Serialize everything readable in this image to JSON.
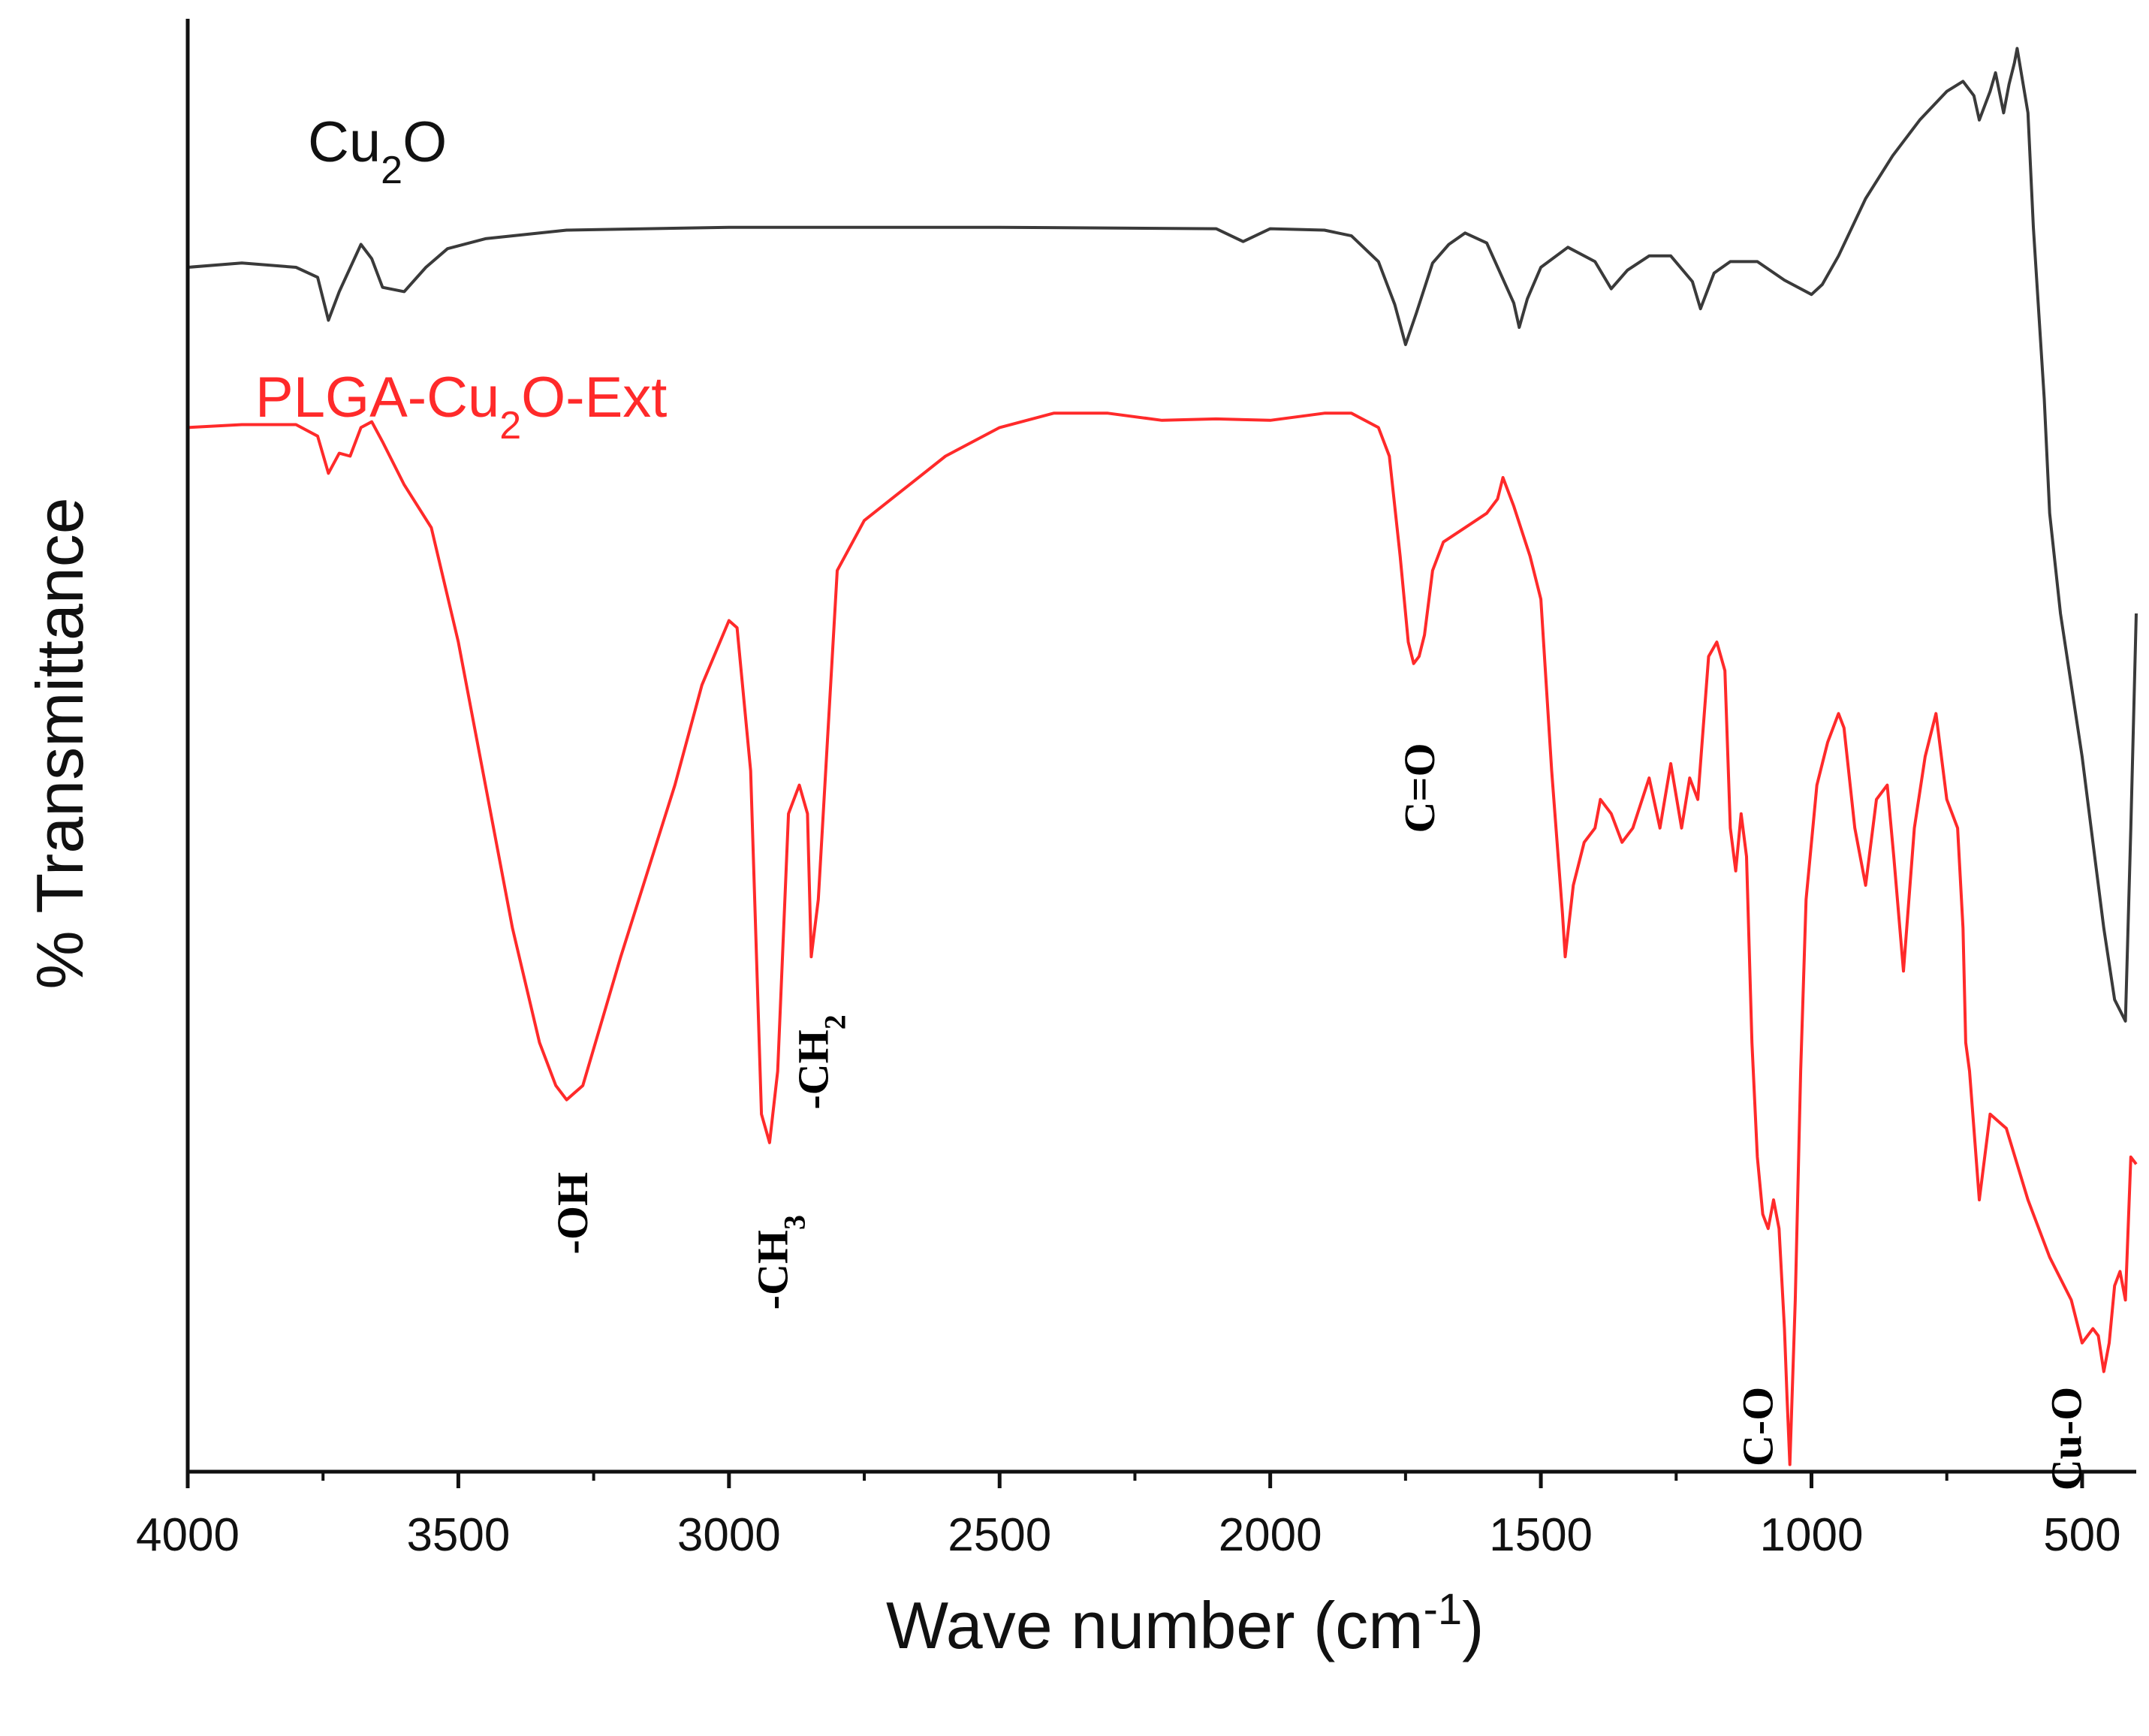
{
  "chart_data": {
    "type": "line",
    "title": "",
    "xlabel": "Wave number (cm",
    "xlabel_sup": "-1",
    "xlabel_end": ")",
    "ylabel": "% Transmittance",
    "xlim": [
      4000,
      400
    ],
    "ylim": [
      0,
      100
    ],
    "x_ticks": [
      4000,
      3500,
      3000,
      2500,
      2000,
      1500,
      1000,
      500
    ],
    "x_tick_labels": [
      "4000",
      "3500",
      "3000",
      "2500",
      "2000",
      "1500",
      "1000",
      "500"
    ],
    "y_ticks_shown": false,
    "grid": false,
    "series": [
      {
        "name": "Cu2O",
        "label_main": "Cu",
        "label_sub": "2",
        "label_end": "O",
        "color": "#3a3a3a",
        "x": [
          4000,
          3900,
          3800,
          3760,
          3740,
          3720,
          3680,
          3660,
          3640,
          3600,
          3560,
          3520,
          3450,
          3300,
          3000,
          2500,
          2100,
          2050,
          2000,
          1900,
          1850,
          1800,
          1770,
          1750,
          1730,
          1700,
          1670,
          1640,
          1600,
          1550,
          1540,
          1525,
          1500,
          1450,
          1400,
          1370,
          1340,
          1300,
          1260,
          1220,
          1205,
          1180,
          1150,
          1100,
          1050,
          1000,
          980,
          950,
          900,
          850,
          800,
          750,
          720,
          700,
          690,
          670,
          660,
          645,
          635,
          625,
          620,
          600,
          590,
          570,
          560,
          540,
          520,
          500,
          480,
          460,
          440,
          420,
          410,
          400
        ],
        "y": [
          84.2,
          84.5,
          84.2,
          83.5,
          80.5,
          82.5,
          85.8,
          84.8,
          82.8,
          82.5,
          84.2,
          85.5,
          86.2,
          86.8,
          87.0,
          87.0,
          86.9,
          86.0,
          86.9,
          86.8,
          86.4,
          84.6,
          81.6,
          78.8,
          81.0,
          84.5,
          85.8,
          86.6,
          85.9,
          81.7,
          80.0,
          82.0,
          84.2,
          85.6,
          84.6,
          82.7,
          84.0,
          85.0,
          85.0,
          83.2,
          81.3,
          83.8,
          84.6,
          84.6,
          83.3,
          82.3,
          83.0,
          85.0,
          89.0,
          92.0,
          94.5,
          96.5,
          97.2,
          96.2,
          94.5,
          96.5,
          97.8,
          95.0,
          97.0,
          98.5,
          99.5,
          95.0,
          87.0,
          75.0,
          67.0,
          60.0,
          55.0,
          50.0,
          44.0,
          38.0,
          33.0,
          31.5,
          45.0,
          60.0
        ]
      },
      {
        "name": "PLGA-Cu2O-Ext",
        "label_main": "PLGA-Cu",
        "label_sub": "2",
        "label_end": "O-Ext",
        "color": "#ff2a2a",
        "x": [
          4000,
          3900,
          3800,
          3760,
          3740,
          3720,
          3700,
          3680,
          3660,
          3640,
          3600,
          3550,
          3500,
          3450,
          3400,
          3350,
          3320,
          3300,
          3270,
          3200,
          3100,
          3050,
          3000,
          2985,
          2960,
          2940,
          2925,
          2910,
          2890,
          2870,
          2855,
          2848,
          2835,
          2800,
          2750,
          2700,
          2600,
          2500,
          2400,
          2300,
          2200,
          2100,
          2000,
          1900,
          1850,
          1800,
          1780,
          1760,
          1745,
          1735,
          1725,
          1715,
          1700,
          1680,
          1640,
          1600,
          1580,
          1570,
          1550,
          1520,
          1500,
          1480,
          1460,
          1455,
          1440,
          1420,
          1400,
          1390,
          1370,
          1350,
          1330,
          1300,
          1280,
          1260,
          1240,
          1225,
          1210,
          1190,
          1175,
          1160,
          1150,
          1140,
          1130,
          1120,
          1110,
          1100,
          1090,
          1080,
          1070,
          1060,
          1050,
          1045,
          1040,
          1030,
          1020,
          1010,
          990,
          970,
          950,
          940,
          920,
          900,
          880,
          860,
          848,
          830,
          810,
          790,
          770,
          750,
          730,
          720,
          715,
          708,
          700,
          690,
          670,
          640,
          600,
          560,
          520,
          500,
          480,
          470,
          460,
          450,
          440,
          430,
          420,
          410,
          400
        ],
        "y": [
          73.0,
          73.2,
          73.2,
          72.4,
          69.8,
          71.2,
          71.0,
          73.0,
          73.4,
          72.0,
          69.0,
          66.0,
          58.0,
          48.0,
          38.0,
          30.0,
          27.0,
          26.0,
          27.0,
          36.0,
          48.0,
          55.0,
          59.5,
          59.0,
          49.0,
          25.0,
          23.0,
          28.0,
          46.0,
          48.0,
          46.0,
          36.0,
          40.0,
          63.0,
          66.5,
          68.0,
          71.0,
          73.0,
          74.0,
          74.0,
          73.5,
          73.6,
          73.5,
          74.0,
          74.0,
          73.0,
          71.0,
          64.0,
          58.0,
          56.5,
          57.0,
          58.5,
          63.0,
          65.0,
          66.0,
          67.0,
          68.0,
          69.5,
          67.5,
          64.0,
          61.0,
          49.0,
          39.0,
          36.0,
          41.0,
          44.0,
          45.0,
          47.0,
          46.0,
          44.0,
          45.0,
          48.5,
          45.0,
          49.5,
          45.0,
          48.5,
          47.0,
          57.0,
          58.0,
          56.0,
          45.0,
          42.0,
          46.0,
          43.0,
          30.0,
          22.0,
          18.0,
          17.0,
          19.0,
          17.0,
          10.0,
          5.0,
          0.5,
          12.0,
          28.0,
          40.0,
          48.0,
          51.0,
          53.0,
          52.0,
          45.0,
          41.0,
          47.0,
          48.0,
          43.0,
          35.0,
          45.0,
          50.0,
          53.0,
          47.0,
          45.0,
          38.0,
          30.0,
          28.0,
          24.0,
          19.0,
          25.0,
          24.0,
          19.0,
          15.0,
          12.0,
          9.0,
          10.0,
          9.5,
          7.0,
          9.0,
          13.0,
          14.0,
          12.0,
          22.0,
          21.5
        ]
      }
    ],
    "annotations": [
      {
        "text": "-OH",
        "x": 3290,
        "y": 22.0
      },
      {
        "text": "-CH",
        "sub": "3",
        "x": 2920,
        "y": 19.0
      },
      {
        "text": "-CH",
        "sub": "2",
        "x": 2845,
        "y": 33.0
      },
      {
        "text": "C=O",
        "x": 1725,
        "y": 52.0
      },
      {
        "text": "C-O",
        "x": 1100,
        "y": 7.0
      },
      {
        "text": "Cu-O",
        "x": 530,
        "y": 7.0
      }
    ]
  },
  "colors": {
    "axis": "#111111",
    "cu2o": "#3a3a3a",
    "plga": "#ff2a2a"
  }
}
